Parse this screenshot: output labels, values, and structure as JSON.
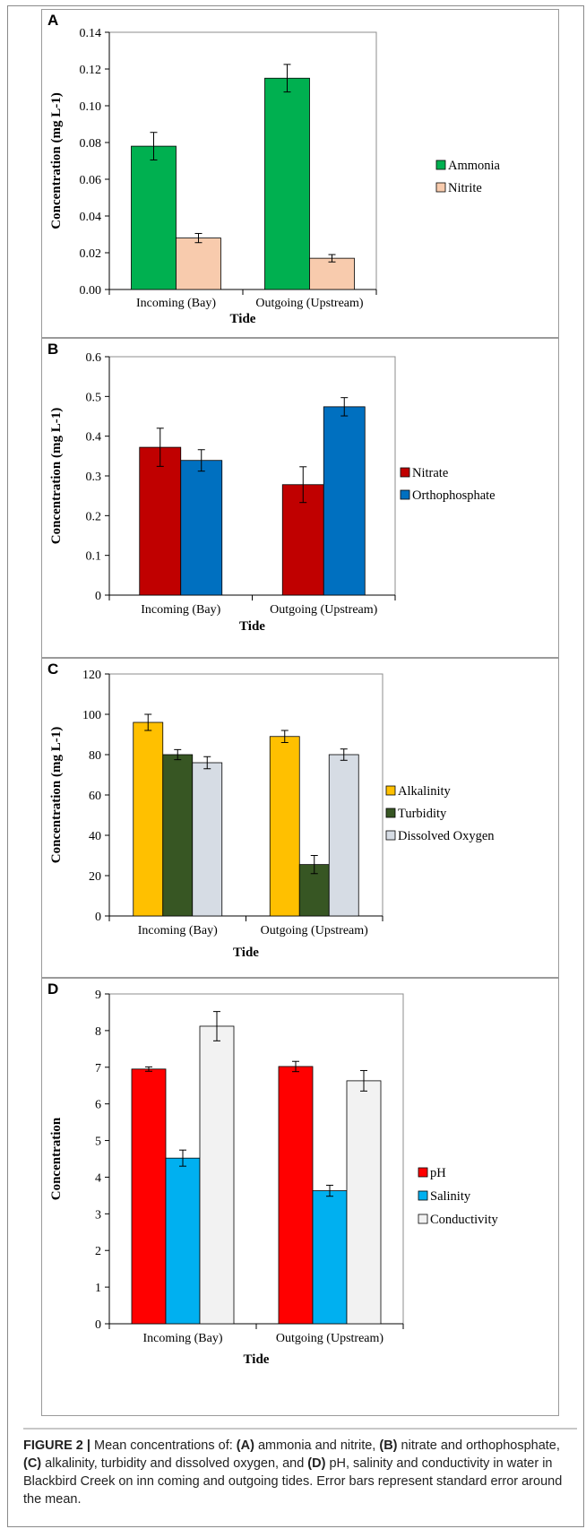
{
  "panels": [
    {
      "letter": "A",
      "ylabel": "Concentration (mg L-1)",
      "xlabel": "Tide",
      "yticks": [
        "0.00",
        "0.02",
        "0.04",
        "0.06",
        "0.08",
        "0.10",
        "0.12",
        "0.14"
      ]
    },
    {
      "letter": "B",
      "ylabel": "Concentration (mg L-1)",
      "xlabel": "Tide",
      "yticks": [
        "0",
        "0.1",
        "0.2",
        "0.3",
        "0.4",
        "0.5",
        "0.6"
      ]
    },
    {
      "letter": "C",
      "ylabel": "Concentration (mg L-1)",
      "xlabel": "Tide",
      "yticks": [
        "0",
        "20",
        "40",
        "60",
        "80",
        "100",
        "120"
      ]
    },
    {
      "letter": "D",
      "ylabel": "Concentration",
      "xlabel": "Tide",
      "yticks": [
        "0",
        "1",
        "2",
        "3",
        "4",
        "5",
        "6",
        "7",
        "8",
        "9"
      ]
    }
  ],
  "chart_data": [
    {
      "type": "bar",
      "panel": "A",
      "categories": [
        "Incoming (Bay)",
        "Outgoing (Upstream)"
      ],
      "series": [
        {
          "name": "Ammonia",
          "values": [
            0.078,
            0.115
          ],
          "errors": [
            0.0075,
            0.0075
          ],
          "color": "#00b050"
        },
        {
          "name": "Nitrite",
          "values": [
            0.028,
            0.017
          ],
          "errors": [
            0.0025,
            0.002
          ],
          "color": "#f8cbad"
        }
      ],
      "xlabel": "Tide",
      "ylabel": "Concentration (mg L-1)",
      "ylim": [
        0,
        0.14
      ],
      "legend": "right",
      "grid": false
    },
    {
      "type": "bar",
      "panel": "B",
      "categories": [
        "Incoming (Bay)",
        "Outgoing (Upstream)"
      ],
      "series": [
        {
          "name": "Nitrate",
          "values": [
            0.372,
            0.278
          ],
          "errors": [
            0.048,
            0.045
          ],
          "color": "#c00000"
        },
        {
          "name": "Orthophosphate",
          "values": [
            0.339,
            0.474
          ],
          "errors": [
            0.027,
            0.023
          ],
          "color": "#0070c0"
        }
      ],
      "xlabel": "Tide",
      "ylabel": "Concentration (mg L-1)",
      "ylim": [
        0,
        0.6
      ],
      "legend": "right",
      "grid": false
    },
    {
      "type": "bar",
      "panel": "C",
      "categories": [
        "Incoming (Bay)",
        "Outgoing (Upstream)"
      ],
      "series": [
        {
          "name": "Alkalinity",
          "values": [
            96,
            89
          ],
          "errors": [
            4,
            3
          ],
          "color": "#ffc000"
        },
        {
          "name": "Turbidity",
          "values": [
            80,
            25.5
          ],
          "errors": [
            2.5,
            4.5
          ],
          "color": "#375623"
        },
        {
          "name": "Dissolved Oxygen",
          "values": [
            76,
            80
          ],
          "errors": [
            3,
            2.8
          ],
          "color": "#d6dce4"
        }
      ],
      "xlabel": "Tide",
      "ylabel": "Concentration (mg L-1)",
      "ylim": [
        0,
        120
      ],
      "legend": "right",
      "grid": false
    },
    {
      "type": "bar",
      "panel": "D",
      "categories": [
        "Incoming (Bay)",
        "Outgoing (Upstream)"
      ],
      "series": [
        {
          "name": "pH",
          "values": [
            6.95,
            7.02
          ],
          "errors": [
            0.06,
            0.14
          ],
          "color": "#ff0000"
        },
        {
          "name": "Salinity",
          "values": [
            4.52,
            3.63
          ],
          "errors": [
            0.22,
            0.15
          ],
          "color": "#00b0f0"
        },
        {
          "name": "Conductivity",
          "values": [
            8.12,
            6.63
          ],
          "errors": [
            0.4,
            0.28
          ],
          "color": "#f2f2f2"
        }
      ],
      "xlabel": "Tide",
      "ylabel": "Concentration",
      "ylim": [
        0,
        9
      ],
      "legend": "right",
      "grid": false
    }
  ],
  "caption": {
    "label": "FIGURE 2 |",
    "t1": " Mean concentrations of: ",
    "a": "(A)",
    "t2": " ammonia and nitrite, ",
    "b": "(B)",
    "t3": " nitrate and orthophosphate, ",
    "c": "(C)",
    "t4": " alkalinity, turbidity and dissolved oxygen, and ",
    "d": "(D)",
    "t5": " pH, salinity and conductivity in water in Blackbird Creek on inn coming and outgoing tides. Error bars represent standard error around the mean."
  }
}
